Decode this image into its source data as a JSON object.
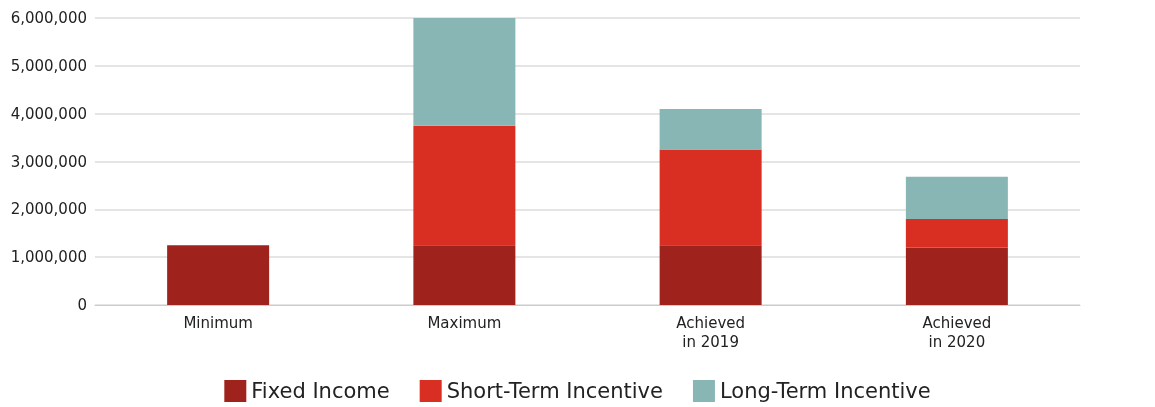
{
  "chart_data": {
    "type": "bar",
    "stacked": true,
    "categories": [
      "Minimum",
      "Maximum",
      "Achieved\nin 2019",
      "Achieved\nin 2020"
    ],
    "series": [
      {
        "name": "Fixed Income",
        "color": "#a0221c",
        "values": [
          1250000,
          1250000,
          1250000,
          1200000
        ]
      },
      {
        "name": "Short-Term Incentive",
        "color": "#d92e22",
        "values": [
          null,
          2500000,
          2000000,
          600000
        ]
      },
      {
        "name": "Long-Term Incentive",
        "color": "#87b6b4",
        "values": [
          null,
          2250000,
          850000,
          880000
        ]
      }
    ],
    "ylim": [
      0,
      6000000
    ],
    "yticks": [
      0,
      {
        "value": 1000000,
        "label": "1,000,000"
      },
      {
        "value": 2000000,
        "label": "2,000,000"
      },
      {
        "value": 3000000,
        "label": "3,000,000"
      },
      {
        "value": 4000000,
        "label": "4,000,000"
      },
      {
        "value": 5000000,
        "label": "5,000,000"
      },
      {
        "value": 6000000,
        "label": "6,000,000"
      }
    ],
    "grid": "y",
    "legend": "bottom"
  }
}
